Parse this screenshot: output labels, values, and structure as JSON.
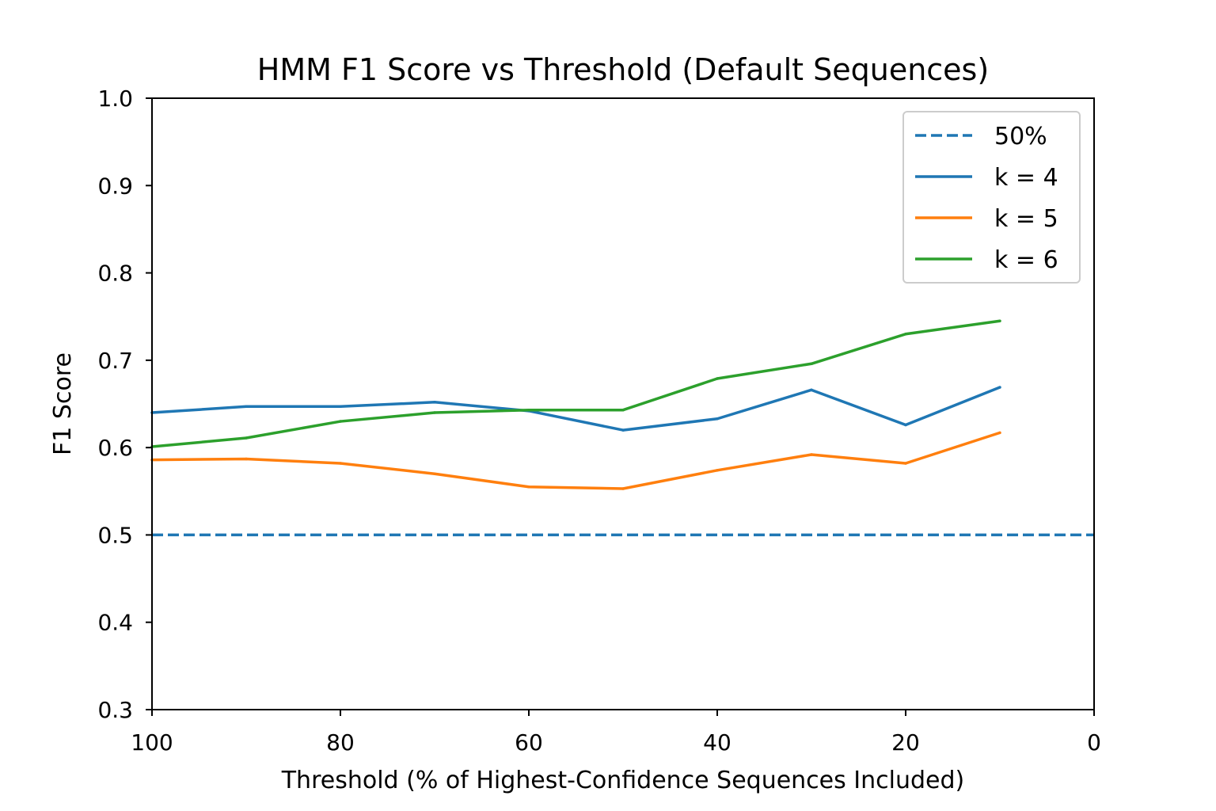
{
  "chart_data": {
    "type": "line",
    "title": "HMM F1 Score vs Threshold (Default Sequences)",
    "xlabel": "Threshold (% of Highest-Confidence Sequences Included)",
    "ylabel": "F1 Score",
    "xlim": [
      100,
      0
    ],
    "ylim": [
      0.3,
      1.0
    ],
    "x_ticks": [
      "100",
      "80",
      "60",
      "40",
      "20",
      "0"
    ],
    "y_ticks": [
      "0.3",
      "0.4",
      "0.5",
      "0.6",
      "0.7",
      "0.8",
      "0.9",
      "1.0"
    ],
    "grid": false,
    "legend_position": "top-right",
    "x": [
      100,
      90,
      80,
      70,
      60,
      50,
      40,
      30,
      20,
      10
    ],
    "reference_line": {
      "name": "50%",
      "y": 0.5,
      "style": "dashed",
      "color": "#1f77b4"
    },
    "series": [
      {
        "name": "k = 4",
        "color": "#1f77b4",
        "values": [
          0.64,
          0.647,
          0.647,
          0.652,
          0.642,
          0.62,
          0.633,
          0.666,
          0.626,
          0.669
        ]
      },
      {
        "name": "k = 5",
        "color": "#ff7f0e",
        "values": [
          0.586,
          0.587,
          0.582,
          0.57,
          0.555,
          0.553,
          0.574,
          0.592,
          0.582,
          0.617
        ]
      },
      {
        "name": "k = 6",
        "color": "#2ca02c",
        "values": [
          0.601,
          0.611,
          0.63,
          0.64,
          0.643,
          0.643,
          0.679,
          0.696,
          0.73,
          0.745
        ]
      }
    ]
  }
}
